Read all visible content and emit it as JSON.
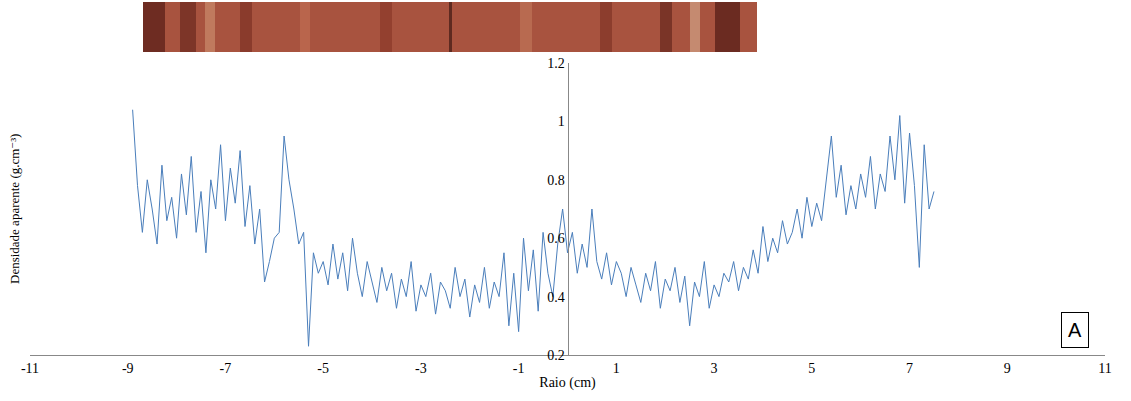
{
  "chart_data": {
    "type": "line",
    "xlabel": "Raio (cm)",
    "ylabel": "Densidade aparente (g.cm⁻³)",
    "annotations": [
      "A"
    ],
    "color": "#4a7ebb",
    "grid": false,
    "xlim": [
      -11,
      11
    ],
    "xticks": [
      -11,
      -9,
      -7,
      -5,
      -3,
      -1,
      1,
      3,
      5,
      7,
      9,
      11
    ],
    "ylim": [
      0.2,
      1.2
    ],
    "yticks": [
      0.2,
      0.4,
      0.6,
      0.8,
      1,
      1.2
    ],
    "x": [
      -8.9,
      -8.8,
      -8.7,
      -8.6,
      -8.5,
      -8.4,
      -8.3,
      -8.2,
      -8.1,
      -8.0,
      -7.9,
      -7.8,
      -7.7,
      -7.6,
      -7.5,
      -7.4,
      -7.3,
      -7.2,
      -7.1,
      -7.0,
      -6.9,
      -6.8,
      -6.7,
      -6.6,
      -6.5,
      -6.4,
      -6.3,
      -6.2,
      -6.1,
      -6.0,
      -5.9,
      -5.8,
      -5.7,
      -5.6,
      -5.5,
      -5.4,
      -5.3,
      -5.2,
      -5.1,
      -5.0,
      -4.9,
      -4.8,
      -4.7,
      -4.6,
      -4.5,
      -4.4,
      -4.3,
      -4.2,
      -4.1,
      -4.0,
      -3.9,
      -3.8,
      -3.7,
      -3.6,
      -3.5,
      -3.4,
      -3.3,
      -3.2,
      -3.1,
      -3.0,
      -2.9,
      -2.8,
      -2.7,
      -2.6,
      -2.5,
      -2.4,
      -2.3,
      -2.2,
      -2.1,
      -2.0,
      -1.9,
      -1.8,
      -1.7,
      -1.6,
      -1.5,
      -1.4,
      -1.3,
      -1.2,
      -1.1,
      -1.0,
      -0.9,
      -0.8,
      -0.7,
      -0.6,
      -0.5,
      -0.4,
      -0.3,
      -0.2,
      -0.1,
      0.0,
      0.1,
      0.2,
      0.3,
      0.4,
      0.5,
      0.6,
      0.7,
      0.8,
      0.9,
      1.0,
      1.1,
      1.2,
      1.3,
      1.4,
      1.5,
      1.6,
      1.7,
      1.8,
      1.9,
      2.0,
      2.1,
      2.2,
      2.3,
      2.4,
      2.5,
      2.6,
      2.7,
      2.8,
      2.9,
      3.0,
      3.1,
      3.2,
      3.3,
      3.4,
      3.5,
      3.6,
      3.7,
      3.8,
      3.9,
      4.0,
      4.1,
      4.2,
      4.3,
      4.4,
      4.5,
      4.6,
      4.7,
      4.8,
      4.9,
      5.0,
      5.1,
      5.2,
      5.3,
      5.4,
      5.5,
      5.6,
      5.7,
      5.8,
      5.9,
      6.0,
      6.1,
      6.2,
      6.3,
      6.4,
      6.5,
      6.6,
      6.7,
      6.8,
      6.9,
      7.0,
      7.1,
      7.2,
      7.3,
      7.4,
      7.5
    ],
    "values": [
      1.04,
      0.78,
      0.62,
      0.8,
      0.7,
      0.58,
      0.85,
      0.66,
      0.74,
      0.6,
      0.82,
      0.68,
      0.88,
      0.62,
      0.76,
      0.55,
      0.8,
      0.7,
      0.92,
      0.66,
      0.84,
      0.72,
      0.9,
      0.64,
      0.78,
      0.58,
      0.7,
      0.45,
      0.52,
      0.6,
      0.62,
      0.95,
      0.8,
      0.7,
      0.58,
      0.62,
      0.23,
      0.55,
      0.48,
      0.52,
      0.44,
      0.58,
      0.46,
      0.55,
      0.42,
      0.6,
      0.48,
      0.4,
      0.52,
      0.45,
      0.38,
      0.5,
      0.42,
      0.48,
      0.36,
      0.46,
      0.4,
      0.52,
      0.35,
      0.44,
      0.4,
      0.48,
      0.34,
      0.45,
      0.42,
      0.36,
      0.5,
      0.4,
      0.46,
      0.33,
      0.44,
      0.38,
      0.5,
      0.36,
      0.45,
      0.4,
      0.55,
      0.3,
      0.48,
      0.28,
      0.6,
      0.42,
      0.56,
      0.35,
      0.62,
      0.48,
      0.4,
      0.58,
      0.7,
      0.55,
      0.62,
      0.48,
      0.58,
      0.5,
      0.7,
      0.52,
      0.46,
      0.55,
      0.44,
      0.52,
      0.48,
      0.4,
      0.5,
      0.44,
      0.38,
      0.48,
      0.42,
      0.52,
      0.36,
      0.46,
      0.42,
      0.5,
      0.38,
      0.47,
      0.3,
      0.45,
      0.4,
      0.52,
      0.36,
      0.44,
      0.4,
      0.48,
      0.45,
      0.52,
      0.42,
      0.5,
      0.46,
      0.56,
      0.48,
      0.64,
      0.52,
      0.6,
      0.55,
      0.66,
      0.58,
      0.62,
      0.7,
      0.6,
      0.74,
      0.64,
      0.72,
      0.66,
      0.8,
      0.95,
      0.74,
      0.85,
      0.68,
      0.78,
      0.7,
      0.82,
      0.74,
      0.88,
      0.7,
      0.82,
      0.76,
      0.95,
      0.8,
      1.02,
      0.72,
      0.96,
      0.78,
      0.5,
      0.92,
      0.7,
      0.76
    ]
  }
}
